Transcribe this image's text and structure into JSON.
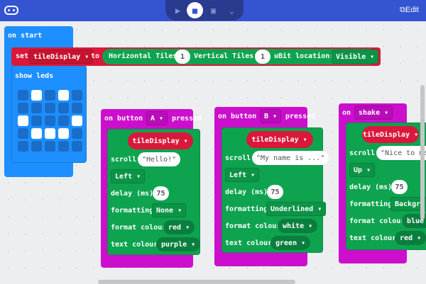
{
  "header": {
    "edit_label": "Edit",
    "modes": [
      "play-icon",
      "blocks-icon",
      "javascript-icon",
      "chevron-down-icon"
    ]
  },
  "colors": {
    "header": "#3454d1",
    "basic": "#1e8fff",
    "variable": "#d9183b",
    "tiles": "#0ea34f",
    "input": "#cc0fcc"
  },
  "on_start": {
    "label": "on start",
    "set": "set",
    "variable": "tileDisplay",
    "to": "to",
    "horizontal_label": "Horizontal Tiles:",
    "horizontal": "1",
    "vertical_label": "Vertical Tiles:",
    "vertical": "1",
    "location_label": "uBit location:",
    "location": "Visible",
    "show_leds": "show leds",
    "leds": [
      [
        0,
        1,
        0,
        1,
        0
      ],
      [
        0,
        0,
        0,
        0,
        0
      ],
      [
        1,
        0,
        0,
        0,
        1
      ],
      [
        0,
        1,
        1,
        1,
        0
      ],
      [
        0,
        0,
        0,
        0,
        0
      ]
    ]
  },
  "events": [
    {
      "prefix": "on button",
      "option": "A",
      "suffix": "pressed",
      "variable": "tileDisplay",
      "scroll_label": "scroll",
      "text": "Hello!",
      "direction": "Left",
      "delay_label": "delay (ms)",
      "delay": "75",
      "formatting_label": "formatting",
      "formatting": "None",
      "format_colour_label": "format colour",
      "format_colour": "red",
      "text_colour_label": "text colour",
      "text_colour": "purple"
    },
    {
      "prefix": "on button",
      "option": "B",
      "suffix": "pressed",
      "variable": "tileDisplay",
      "scroll_label": "scroll",
      "text": "My name is ...",
      "direction": "Left",
      "delay_label": "delay (ms)",
      "delay": "75",
      "formatting_label": "formatting",
      "formatting": "Underlined",
      "format_colour_label": "format colour",
      "format_colour": "white",
      "text_colour_label": "text colour",
      "text_colour": "green"
    },
    {
      "prefix": "on",
      "option": "shake",
      "suffix": "",
      "variable": "tileDisplay",
      "scroll_label": "scroll",
      "text": "Nice to me",
      "direction": "Up",
      "delay_label": "delay (ms)",
      "delay": "75",
      "formatting_label": "formatting",
      "formatting": "Backgro",
      "format_colour_label": "format colour",
      "format_colour": "blue",
      "text_colour_label": "text colour",
      "text_colour": "red"
    }
  ]
}
